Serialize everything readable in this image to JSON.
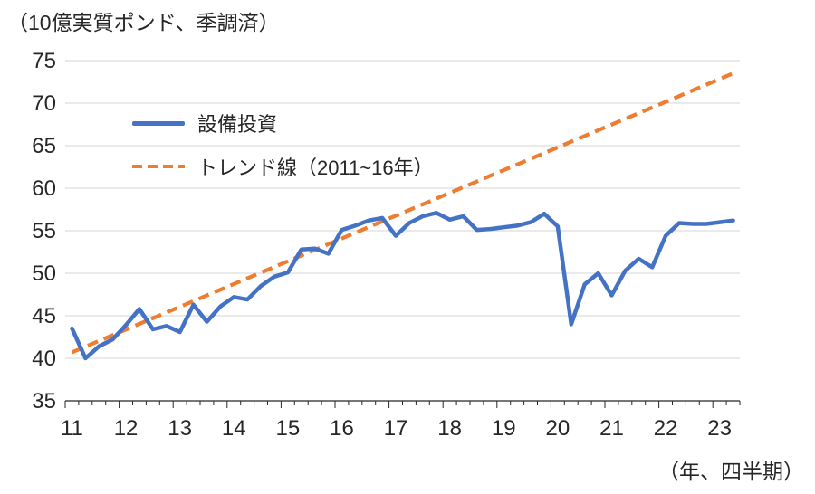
{
  "chart_data": {
    "type": "line",
    "title": "（10億実質ポンド、季調済）",
    "x_caption": "（年、四半期）",
    "x_unit": "year-quarter",
    "x_start": "2011Q1",
    "x_end": "2023Q2",
    "points_per_year": 4,
    "x_tick_labels": [
      "11",
      "12",
      "13",
      "14",
      "15",
      "16",
      "17",
      "18",
      "19",
      "20",
      "21",
      "22",
      "23"
    ],
    "y_ticks": [
      35,
      40,
      45,
      50,
      55,
      60,
      65,
      70,
      75
    ],
    "ylim": [
      35,
      75
    ],
    "grid": "horizontal",
    "legend_position": "inside-top-left",
    "colors": {
      "series": "#4472C4",
      "trend": "#ED7D31",
      "gridline": "#D6D6D6",
      "axis": "#262626",
      "text": "#262626"
    },
    "series": [
      {
        "name": "設備投資",
        "color": "#4472C4",
        "style": "solid",
        "values": [
          43.5,
          40.0,
          41.4,
          42.2,
          43.9,
          45.8,
          43.4,
          43.8,
          43.1,
          46.3,
          44.3,
          46.1,
          47.2,
          46.9,
          48.5,
          49.6,
          50.1,
          52.8,
          52.9,
          52.3,
          55.1,
          55.6,
          56.2,
          56.5,
          54.4,
          55.9,
          56.7,
          57.1,
          56.3,
          56.7,
          55.1,
          55.2,
          55.4,
          55.6,
          56.0,
          57.0,
          55.5,
          44.0,
          48.7,
          50.0,
          47.4,
          50.3,
          51.7,
          50.7,
          54.4,
          55.9,
          55.8,
          55.8,
          56.0,
          56.2
        ]
      },
      {
        "name": "トレンド線（2011~16年）",
        "color": "#ED7D31",
        "style": "dashed",
        "type": "linear_trend",
        "start_value": 40.7,
        "end_value": 73.5
      }
    ]
  }
}
